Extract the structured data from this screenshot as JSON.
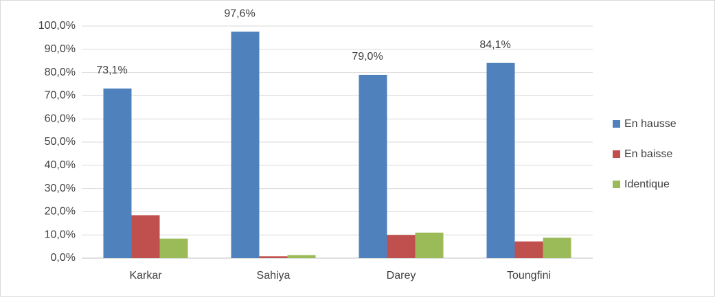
{
  "chart_data": {
    "type": "bar",
    "categories": [
      "Karkar",
      "Sahiya",
      "Darey",
      "Toungfini"
    ],
    "series": [
      {
        "name": "En hausse",
        "color": "#4f81bd",
        "values": [
          73.1,
          97.6,
          79.0,
          84.1
        ],
        "value_labels": [
          "73,1%",
          "97,6%",
          "79,0%",
          "84,1%"
        ]
      },
      {
        "name": "En baisse",
        "color": "#c0504d",
        "values": [
          18.5,
          0.8,
          10.0,
          7.2
        ]
      },
      {
        "name": "Identique",
        "color": "#9bbb59",
        "values": [
          8.4,
          1.3,
          11.0,
          8.8
        ]
      }
    ],
    "ylim": [
      0,
      100
    ],
    "yticks": [
      {
        "value": 0,
        "label": "0,0%"
      },
      {
        "value": 10,
        "label": "10,0%"
      },
      {
        "value": 20,
        "label": "20,0%"
      },
      {
        "value": 30,
        "label": "30,0%"
      },
      {
        "value": 40,
        "label": "40,0%"
      },
      {
        "value": 50,
        "label": "50,0%"
      },
      {
        "value": 60,
        "label": "60,0%"
      },
      {
        "value": 70,
        "label": "70,0%"
      },
      {
        "value": 80,
        "label": "80,0%"
      },
      {
        "value": 90,
        "label": "90,0%"
      },
      {
        "value": 100,
        "label": "100,0%"
      }
    ],
    "grid": true,
    "legend": "right"
  }
}
